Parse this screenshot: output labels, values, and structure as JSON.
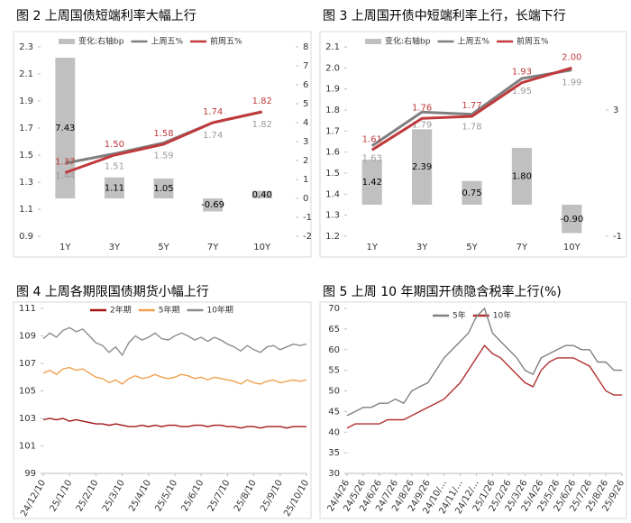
{
  "chart_data": [
    {
      "type": "combo",
      "title": "图 2 上周国债短端利率大幅上行",
      "categories": [
        "1Y",
        "3Y",
        "5Y",
        "7Y",
        "10Y"
      ],
      "ylim": [
        0.9,
        2.3
      ],
      "yticks": [
        0.9,
        1.1,
        1.3,
        1.5,
        1.7,
        1.9,
        2.1,
        2.3
      ],
      "y2lim": [
        -2,
        8
      ],
      "y2ticks": [
        -2,
        -1,
        0,
        1,
        2,
        3,
        4,
        5,
        6,
        7,
        8
      ],
      "series": [
        {
          "name": "变化:右轴bp",
          "type": "bar",
          "axis": "y2",
          "color": "#c0c0c0",
          "values": [
            7.43,
            1.11,
            1.05,
            -0.69,
            0.4
          ],
          "value_labels": [
            "7.43",
            "1.11",
            "1.05",
            "-0.69",
            "0.40"
          ]
        },
        {
          "name": "上周五%",
          "type": "line",
          "color": "#7f7f7f",
          "values": [
            1.44,
            1.51,
            1.59,
            1.74,
            1.82
          ],
          "value_labels": [
            "1.44",
            "1.51",
            "1.59",
            "1.74",
            "1.82"
          ]
        },
        {
          "name": "前周五%",
          "type": "line",
          "color": "#c0393b",
          "values": [
            1.37,
            1.5,
            1.58,
            1.74,
            1.82
          ],
          "value_labels": [
            "1.37",
            "1.50",
            "1.58",
            "1.74",
            "1.82"
          ]
        }
      ]
    },
    {
      "type": "combo",
      "title": "图 3 上周国开债中短端利率上行，长端下行",
      "categories": [
        "1Y",
        "3Y",
        "5Y",
        "7Y",
        "10Y"
      ],
      "ylim": [
        1.2,
        2.1
      ],
      "yticks": [
        1.2,
        1.3,
        1.4,
        1.5,
        1.6,
        1.7,
        1.8,
        1.9,
        {
          "value": 2,
          "label": "2.0"
        },
        2.1
      ],
      "y2lim": [
        -1,
        5
      ],
      "y2ticks": [
        -1,
        3
      ],
      "series": [
        {
          "name": "变化:右轴bp",
          "type": "bar",
          "axis": "y2",
          "color": "#c0c0c0",
          "values": [
            1.42,
            2.39,
            0.75,
            1.8,
            -0.9
          ],
          "value_labels": [
            "1.42",
            "2.39",
            "0.75",
            "1.80",
            "-0.90"
          ]
        },
        {
          "name": "上周五%",
          "type": "line",
          "color": "#7f7f7f",
          "values": [
            1.63,
            1.79,
            1.78,
            1.95,
            1.99
          ],
          "value_labels": [
            "1.63",
            "1.79",
            "1.78",
            "1.95",
            "1.99"
          ]
        },
        {
          "name": "前周五%",
          "type": "line",
          "color": "#c0393b",
          "values": [
            1.61,
            1.76,
            1.77,
            1.93,
            2.0
          ],
          "value_labels": [
            "1.61",
            "1.76",
            "1.77",
            "1.93",
            "2.00"
          ]
        }
      ]
    },
    {
      "type": "line",
      "title": "图 4 上周各期限国债期货小幅上行",
      "categories": [
        "24/12/10",
        null,
        null,
        null,
        "25/1/10",
        null,
        null,
        null,
        "25/2/10",
        null,
        null,
        null,
        "25/3/10",
        null,
        null,
        null,
        "25/4/10",
        null,
        null,
        null,
        "25/5/10",
        null,
        null,
        null,
        "25/6/10",
        null,
        null,
        null,
        "25/7/10",
        null,
        null,
        null,
        "25/8/10",
        null,
        null,
        null,
        "25/9/10",
        null,
        null,
        null,
        "25/10/10"
      ],
      "ylim": [
        99,
        111
      ],
      "yticks": [
        99,
        101,
        103,
        105,
        107,
        109,
        111
      ],
      "series": [
        {
          "name": "2年期",
          "color": "#a31515",
          "values": [
            102.9,
            103.0,
            102.9,
            103.0,
            102.8,
            102.9,
            102.8,
            102.7,
            102.6,
            102.6,
            102.5,
            102.6,
            102.5,
            102.4,
            102.4,
            102.5,
            102.4,
            102.5,
            102.4,
            102.5,
            102.5,
            102.4,
            102.4,
            102.5,
            102.5,
            102.4,
            102.5,
            102.5,
            102.4,
            102.4,
            102.3,
            102.4,
            102.4,
            102.3,
            102.4,
            102.4,
            102.4,
            102.3,
            102.4,
            102.4,
            102.4
          ]
        },
        {
          "name": "5年期",
          "color": "#f0a050",
          "values": [
            106.3,
            106.5,
            106.2,
            106.6,
            106.7,
            106.5,
            106.6,
            106.3,
            106.0,
            105.9,
            105.6,
            105.8,
            105.5,
            105.9,
            106.1,
            105.9,
            106.0,
            106.2,
            106.0,
            105.9,
            106.0,
            106.2,
            106.1,
            105.9,
            106.0,
            105.8,
            106.0,
            105.9,
            105.8,
            105.7,
            105.5,
            105.8,
            105.6,
            105.5,
            105.7,
            105.8,
            105.6,
            105.7,
            105.8,
            105.7,
            105.8
          ]
        },
        {
          "name": "10年期",
          "color": "#8c8c8c",
          "values": [
            108.8,
            109.2,
            108.9,
            109.4,
            109.6,
            109.3,
            109.5,
            109.0,
            108.5,
            108.3,
            107.8,
            108.2,
            107.6,
            108.5,
            109.0,
            108.7,
            108.9,
            109.2,
            108.8,
            108.7,
            109.0,
            109.2,
            109.0,
            108.7,
            108.9,
            108.6,
            108.9,
            108.7,
            108.4,
            108.2,
            107.9,
            108.3,
            108.0,
            107.8,
            108.2,
            108.3,
            108.0,
            108.2,
            108.4,
            108.3,
            108.4
          ]
        }
      ]
    },
    {
      "type": "line",
      "title": "图 5 上周 10 年期国开债隐含税率上行(%)",
      "categories": [
        "24/4/26",
        null,
        "24/5/26",
        null,
        "24/6/26",
        null,
        "24/7/26",
        null,
        "24/8/26",
        null,
        "24/9/26",
        null,
        "24/10/...",
        null,
        "24/11/...",
        null,
        "24/12/...",
        null,
        "25/1/26",
        null,
        "25/2/26",
        null,
        "25/3/26",
        null,
        "25/4/26",
        null,
        "25/5/26",
        null,
        "25/6/26",
        null,
        "25/7/26",
        null,
        "25/8/26",
        null,
        "25/9/26"
      ],
      "ylim": [
        30,
        70
      ],
      "yticks": [
        30,
        35,
        40,
        45,
        50,
        55,
        60,
        65,
        70
      ],
      "series": [
        {
          "name": "5年",
          "color": "#808080",
          "values": [
            44,
            45,
            46,
            46,
            47,
            47,
            48,
            47,
            50,
            51,
            52,
            55,
            58,
            60,
            62,
            64,
            68,
            70,
            64,
            62,
            60,
            58,
            55,
            54,
            58,
            59,
            60,
            61,
            61,
            60,
            60,
            57,
            57,
            55,
            55
          ]
        },
        {
          "name": "10年",
          "color": "#b03030",
          "values": [
            41,
            42,
            42,
            42,
            42,
            43,
            43,
            43,
            44,
            45,
            46,
            47,
            48,
            50,
            52,
            55,
            58,
            61,
            59,
            58,
            56,
            54,
            52,
            51,
            55,
            57,
            58,
            58,
            58,
            57,
            56,
            53,
            50,
            49,
            49
          ]
        }
      ]
    }
  ]
}
